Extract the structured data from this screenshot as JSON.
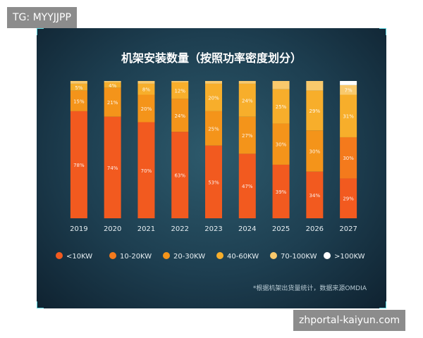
{
  "watermark_top": "TG: MYYJJPP",
  "watermark_bottom": "zhportal-kaiyun.com",
  "chart_data": {
    "type": "bar",
    "stacked": true,
    "normalized_percent": true,
    "title": "机架安装数量（按照功率密度划分）",
    "categories": [
      "2019",
      "2020",
      "2021",
      "2022",
      "2023",
      "2024",
      "2025",
      "2026",
      "2027"
    ],
    "series": [
      {
        "name": "<10KW",
        "color": "#f25a1f",
        "values": [
          78,
          74,
          70,
          63,
          53,
          47,
          39,
          34,
          29
        ],
        "labels": [
          "78%",
          "74%",
          "70%",
          "63%",
          "53%",
          "47%",
          "39%",
          "34%",
          "29%"
        ]
      },
      {
        "name": "10-20KW",
        "color": "#f47a1c",
        "values": [
          0,
          0,
          0,
          0,
          0,
          0,
          0,
          0,
          30
        ],
        "labels": [
          "",
          "",
          "",
          "",
          "",
          "",
          "",
          "",
          "30%"
        ]
      },
      {
        "name": "20-30KW",
        "color": "#f4941a",
        "values": [
          15,
          21,
          20,
          24,
          25,
          27,
          30,
          30,
          0
        ],
        "labels": [
          "15%",
          "21%",
          "20%",
          "24%",
          "25%",
          "27%",
          "30%",
          "30%",
          ""
        ]
      },
      {
        "name": "40-60KW",
        "color": "#f7ae2b",
        "values": [
          5,
          4,
          8,
          12,
          20,
          24,
          25,
          29,
          31
        ],
        "labels": [
          "5%",
          "4%",
          "8%",
          "12%",
          "20%",
          "24%",
          "25%",
          "29%",
          "31%"
        ]
      },
      {
        "name": "70-100KW",
        "color": "#f9c96c",
        "values": [
          2,
          1,
          2,
          1,
          2,
          2,
          6,
          7,
          7
        ],
        "labels": [
          "",
          "",
          "",
          "",
          "",
          "",
          "",
          "",
          "7%"
        ]
      },
      {
        "name": ">100KW",
        "color": "#ffffff",
        "values": [
          0,
          0,
          0,
          0,
          0,
          0,
          0,
          0,
          3
        ],
        "labels": [
          "",
          "",
          "",
          "",
          "",
          "",
          "",
          "",
          ""
        ]
      }
    ],
    "ylim": [
      0,
      100
    ],
    "grid": false,
    "legend_position": "bottom",
    "note": "*根据机架出货量统计，数据来源OMDIA"
  }
}
